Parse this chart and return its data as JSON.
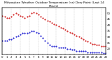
{
  "title": "Milwaukee Weather Outdoor Temperature (vs) Dew Point (Last 24 Hours)",
  "temp_color": "#cc0000",
  "dew_color": "#0000cc",
  "background_color": "#ffffff",
  "grid_color": "#999999",
  "ylim": [
    15,
    55
  ],
  "xlim": [
    0,
    23
  ],
  "ylabel_right_ticks": [
    20,
    25,
    30,
    35,
    40,
    45,
    50
  ],
  "temp_data": [
    [
      0,
      48
    ],
    [
      0.5,
      47
    ],
    [
      1,
      46
    ],
    [
      1.5,
      46
    ],
    [
      2,
      47
    ],
    [
      2.5,
      49
    ],
    [
      3,
      50
    ],
    [
      3.5,
      49
    ],
    [
      4,
      48
    ],
    [
      4.5,
      47
    ],
    [
      5,
      46
    ],
    [
      5.5,
      47
    ],
    [
      6,
      48
    ],
    [
      6.5,
      50
    ],
    [
      7,
      51
    ],
    [
      7.5,
      50
    ],
    [
      8,
      49
    ],
    [
      8.5,
      47
    ],
    [
      9,
      46
    ],
    [
      9.5,
      45
    ],
    [
      10,
      44
    ],
    [
      10.5,
      43
    ],
    [
      11,
      42
    ],
    [
      11.5,
      41
    ],
    [
      12,
      40
    ],
    [
      12.5,
      39
    ],
    [
      13,
      38
    ],
    [
      13.5,
      37
    ],
    [
      14,
      36
    ],
    [
      14.5,
      35
    ],
    [
      15,
      34
    ],
    [
      15.5,
      33
    ],
    [
      16,
      32
    ],
    [
      16.5,
      31
    ],
    [
      17,
      30
    ],
    [
      17.5,
      29
    ],
    [
      18,
      28
    ],
    [
      18.5,
      27
    ],
    [
      19,
      26
    ],
    [
      19.5,
      25
    ],
    [
      20,
      24
    ],
    [
      20.5,
      24
    ],
    [
      21,
      23
    ],
    [
      21.5,
      23
    ],
    [
      22,
      22
    ],
    [
      22.5,
      22
    ],
    [
      23,
      22
    ]
  ],
  "dew_data": [
    [
      0,
      27
    ],
    [
      0.5,
      27
    ],
    [
      1,
      27
    ],
    [
      1.5,
      28
    ],
    [
      2,
      28
    ],
    [
      2.5,
      29
    ],
    [
      3,
      30
    ],
    [
      3.5,
      31
    ],
    [
      4,
      32
    ],
    [
      4.5,
      33
    ],
    [
      5,
      33
    ],
    [
      5.5,
      33
    ],
    [
      6,
      34
    ],
    [
      6.5,
      35
    ],
    [
      7,
      35
    ],
    [
      7.5,
      34
    ],
    [
      8,
      33
    ],
    [
      8.5,
      31
    ],
    [
      9,
      29
    ],
    [
      9.5,
      27
    ],
    [
      10,
      25
    ],
    [
      10.5,
      23
    ],
    [
      11,
      22
    ],
    [
      11.5,
      22
    ],
    [
      12,
      22
    ],
    [
      12.5,
      21
    ],
    [
      13,
      21
    ],
    [
      13.5,
      21
    ],
    [
      14,
      21
    ],
    [
      14.5,
      20
    ],
    [
      15,
      20
    ],
    [
      15.5,
      19
    ],
    [
      16,
      19
    ],
    [
      16.5,
      18
    ],
    [
      17,
      18
    ],
    [
      17.5,
      18
    ],
    [
      18,
      18
    ],
    [
      18.5,
      18
    ],
    [
      19,
      17
    ],
    [
      19.5,
      17
    ],
    [
      20,
      17
    ],
    [
      20.5,
      17
    ],
    [
      21,
      17
    ],
    [
      21.5,
      17
    ],
    [
      22,
      17
    ],
    [
      22.5,
      16
    ],
    [
      23,
      16
    ]
  ],
  "x_tick_positions": [
    0,
    1,
    2,
    3,
    4,
    5,
    6,
    7,
    8,
    9,
    10,
    11,
    12,
    13,
    14,
    15,
    16,
    17,
    18,
    19,
    20,
    21,
    22,
    23
  ],
  "x_tick_labels": [
    "0",
    "1",
    "2",
    "3",
    "4",
    "5",
    "6",
    "7",
    "8",
    "9",
    "10",
    "11",
    "12",
    "13",
    "14",
    "15",
    "16",
    "17",
    "18",
    "19",
    "20",
    "21",
    "22",
    "23"
  ],
  "vgrid_positions": [
    0,
    2,
    4,
    6,
    8,
    10,
    12,
    14,
    16,
    18,
    20,
    22
  ],
  "title_fontsize": 3.2,
  "tick_fontsize": 2.8,
  "marker_size": 1.0
}
